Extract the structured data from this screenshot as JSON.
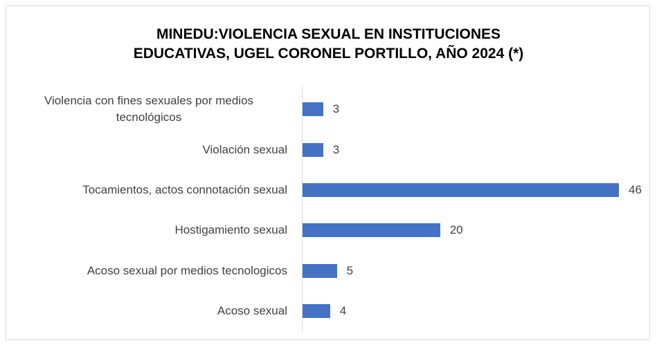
{
  "chart_data": {
    "type": "bar",
    "orientation": "horizontal",
    "title": [
      "MINEDU:VIOLENCIA  SEXUAL EN INSTITUCIONES",
      "EDUCATIVAS, UGEL CORONEL PORTILLO, AÑO 2024 (*)"
    ],
    "categories": [
      "Violencia con fines sexuales por medios tecnológicos",
      "Violación sexual",
      "Tocamientos, actos connotación sexual",
      "Hostigamiento sexual",
      "Acoso sexual por medios tecnologicos",
      "Acoso sexual"
    ],
    "values": [
      3,
      3,
      46,
      20,
      5,
      4
    ],
    "color": "#4472c4"
  }
}
